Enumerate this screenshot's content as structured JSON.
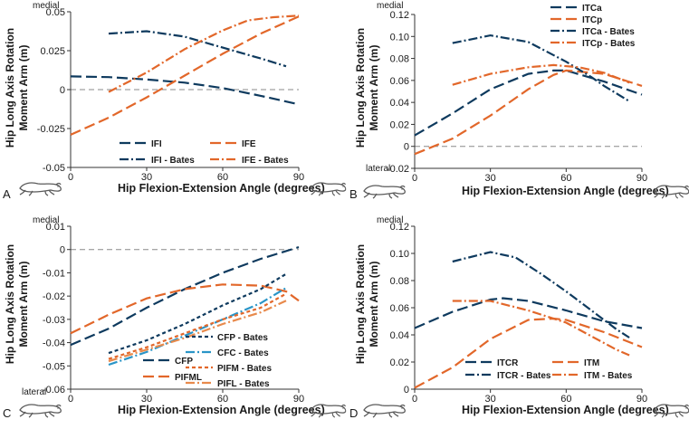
{
  "chart_data": [
    {
      "panel": "A",
      "type": "line",
      "xlabel": "Hip Flexion-Extension Angle (degrees)",
      "ylabel": [
        "Hip Long Axis Rotation",
        "Moment Arm (m)"
      ],
      "xlim": [
        0,
        90
      ],
      "ylim": [
        -0.05,
        0.05
      ],
      "xticks": [
        0,
        30,
        60,
        90
      ],
      "yticks": [
        -0.05,
        -0.025,
        0,
        0.025,
        0.05
      ],
      "ytick_labels": [
        "-0.05",
        "-0.025",
        "0",
        "0.025",
        "0.05"
      ],
      "top_word": "medial",
      "bottom_word": "",
      "legend_position": "bottom",
      "series": [
        {
          "name": "IFI",
          "color": "#0e3a5e",
          "dash": "12,5",
          "points": [
            [
              0,
              0.0085
            ],
            [
              15,
              0.008
            ],
            [
              30,
              0.0065
            ],
            [
              45,
              0.0045
            ],
            [
              60,
              0.001
            ],
            [
              75,
              -0.004
            ],
            [
              90,
              -0.0095
            ]
          ]
        },
        {
          "name": "IFE",
          "color": "#e2672a",
          "dash": "12,5",
          "points": [
            [
              0,
              -0.029
            ],
            [
              15,
              -0.018
            ],
            [
              30,
              -0.005
            ],
            [
              45,
              0.009
            ],
            [
              60,
              0.023
            ],
            [
              75,
              0.036
            ],
            [
              90,
              0.047
            ]
          ]
        },
        {
          "name": "IFI - Bates",
          "color": "#0e3a5e",
          "dash": "10,3,2,3",
          "points": [
            [
              15,
              0.036
            ],
            [
              30,
              0.0375
            ],
            [
              45,
              0.034
            ],
            [
              60,
              0.027
            ],
            [
              75,
              0.02
            ],
            [
              85,
              0.015
            ]
          ]
        },
        {
          "name": "IFE - Bates",
          "color": "#e2672a",
          "dash": "10,3,2,3",
          "points": [
            [
              15,
              -0.0015
            ],
            [
              30,
              0.011
            ],
            [
              45,
              0.026
            ],
            [
              60,
              0.038
            ],
            [
              70,
              0.0445
            ],
            [
              80,
              0.0465
            ],
            [
              90,
              0.0475
            ]
          ]
        }
      ]
    },
    {
      "panel": "B",
      "type": "line",
      "xlabel": "Hip Flexion-Extension Angle (degrees)",
      "ylabel": [
        "Hip Long Axis Rotation",
        "Moment Arm (m)"
      ],
      "xlim": [
        0,
        90
      ],
      "ylim": [
        -0.02,
        0.12
      ],
      "xticks": [
        0,
        30,
        60,
        90
      ],
      "yticks": [
        -0.02,
        0,
        0.02,
        0.04,
        0.06,
        0.08,
        0.1,
        0.12
      ],
      "ytick_labels": [
        "-0.02",
        "0",
        "0.02",
        "0.04",
        "0.06",
        "0.08",
        "0.10",
        "0.12"
      ],
      "top_word": "medial",
      "bottom_word": "lateral",
      "legend_position": "top-right",
      "series": [
        {
          "name": "ITCa",
          "color": "#0e3a5e",
          "dash": "12,5",
          "points": [
            [
              0,
              0.01
            ],
            [
              15,
              0.03
            ],
            [
              30,
              0.052
            ],
            [
              45,
              0.066
            ],
            [
              55,
              0.069
            ],
            [
              60,
              0.069
            ],
            [
              75,
              0.059
            ],
            [
              90,
              0.047
            ]
          ]
        },
        {
          "name": "ITCp",
          "color": "#e2672a",
          "dash": "12,5",
          "points": [
            [
              0,
              -0.007
            ],
            [
              15,
              0.007
            ],
            [
              30,
              0.028
            ],
            [
              45,
              0.052
            ],
            [
              55,
              0.065
            ],
            [
              60,
              0.069
            ],
            [
              75,
              0.066
            ],
            [
              90,
              0.055
            ]
          ]
        },
        {
          "name": "ITCa - Bates",
          "color": "#0e3a5e",
          "dash": "10,3,2,3",
          "points": [
            [
              15,
              0.094
            ],
            [
              30,
              0.101
            ],
            [
              45,
              0.095
            ],
            [
              60,
              0.077
            ],
            [
              70,
              0.063
            ],
            [
              75,
              0.055
            ],
            [
              85,
              0.041
            ]
          ]
        },
        {
          "name": "ITCp - Bates",
          "color": "#e2672a",
          "dash": "10,3,2,3",
          "points": [
            [
              15,
              0.056
            ],
            [
              30,
              0.066
            ],
            [
              45,
              0.072
            ],
            [
              55,
              0.074
            ],
            [
              65,
              0.072
            ],
            [
              75,
              0.067
            ],
            [
              85,
              0.058
            ]
          ]
        }
      ]
    },
    {
      "panel": "C",
      "type": "line",
      "xlabel": "Hip Flexion-Extension Angle (degrees)",
      "ylabel": [
        "Hip Long Axis Rotation",
        "Moment Arm (m)"
      ],
      "xlim": [
        0,
        90
      ],
      "ylim": [
        -0.06,
        0.01
      ],
      "xticks": [
        0,
        30,
        60,
        90
      ],
      "yticks": [
        -0.06,
        -0.05,
        -0.04,
        -0.03,
        -0.02,
        -0.01,
        0,
        0.01
      ],
      "ytick_labels": [
        "-0.06",
        "-0.05",
        "-0.04",
        "-0.03",
        "-0.02",
        "-0.01",
        "0",
        "0.01"
      ],
      "top_word": "medial",
      "bottom_word": "lateral",
      "legend_position": "bottom-right",
      "series": [
        {
          "name": "CFP",
          "color": "#0e3a5e",
          "dash": "12,5",
          "points": [
            [
              0,
              -0.041
            ],
            [
              15,
              -0.034
            ],
            [
              30,
              -0.025
            ],
            [
              45,
              -0.017
            ],
            [
              60,
              -0.01
            ],
            [
              75,
              -0.004
            ],
            [
              90,
              0.001
            ]
          ]
        },
        {
          "name": "PIFML",
          "color": "#e2672a",
          "dash": "12,5",
          "points": [
            [
              0,
              -0.036
            ],
            [
              15,
              -0.028
            ],
            [
              30,
              -0.021
            ],
            [
              45,
              -0.017
            ],
            [
              60,
              -0.015
            ],
            [
              75,
              -0.0155
            ],
            [
              85,
              -0.018
            ],
            [
              90,
              -0.022
            ]
          ]
        },
        {
          "name": "CFP - Bates",
          "color": "#0e3a5e",
          "dash": "4,3",
          "points": [
            [
              15,
              -0.0445
            ],
            [
              30,
              -0.039
            ],
            [
              45,
              -0.032
            ],
            [
              60,
              -0.024
            ],
            [
              75,
              -0.017
            ],
            [
              85,
              -0.0105
            ]
          ]
        },
        {
          "name": "CFC - Bates",
          "color": "#2a95c7",
          "dash": "10,3,2,3",
          "points": [
            [
              15,
              -0.0495
            ],
            [
              30,
              -0.044
            ],
            [
              45,
              -0.037
            ],
            [
              60,
              -0.03
            ],
            [
              75,
              -0.023
            ],
            [
              85,
              -0.0165
            ]
          ]
        },
        {
          "name": "PIFM - Bates",
          "color": "#e2672a",
          "dash": "4,3",
          "points": [
            [
              15,
              -0.047
            ],
            [
              30,
              -0.042
            ],
            [
              45,
              -0.036
            ],
            [
              60,
              -0.03
            ],
            [
              75,
              -0.025
            ],
            [
              85,
              -0.019
            ]
          ]
        },
        {
          "name": "PIFL - Bates",
          "color": "#e88a4c",
          "dash": "10,3,2,3",
          "points": [
            [
              15,
              -0.048
            ],
            [
              30,
              -0.043
            ],
            [
              45,
              -0.038
            ],
            [
              60,
              -0.032
            ],
            [
              75,
              -0.027
            ],
            [
              85,
              -0.022
            ]
          ]
        }
      ]
    },
    {
      "panel": "D",
      "type": "line",
      "xlabel": "Hip Flexion-Extension Angle (degrees)",
      "ylabel": [
        "Hip Long Axis Rotation",
        "Moment Arm (m)"
      ],
      "xlim": [
        0,
        90
      ],
      "ylim": [
        0,
        0.12
      ],
      "xticks": [
        0,
        30,
        60,
        90
      ],
      "yticks": [
        0,
        0.02,
        0.04,
        0.06,
        0.08,
        0.1,
        0.12
      ],
      "ytick_labels": [
        "0",
        "0.02",
        "0.04",
        "0.06",
        "0.08",
        "0.10",
        "0.12"
      ],
      "top_word": "medial",
      "bottom_word": "",
      "legend_position": "bottom",
      "series": [
        {
          "name": "ITCR",
          "color": "#0e3a5e",
          "dash": "12,5",
          "points": [
            [
              0,
              0.045
            ],
            [
              15,
              0.057
            ],
            [
              30,
              0.066
            ],
            [
              35,
              0.067
            ],
            [
              45,
              0.065
            ],
            [
              60,
              0.058
            ],
            [
              75,
              0.05
            ],
            [
              90,
              0.045
            ]
          ]
        },
        {
          "name": "ITM",
          "color": "#e2672a",
          "dash": "12,5",
          "points": [
            [
              0,
              0.001
            ],
            [
              15,
              0.016
            ],
            [
              30,
              0.037
            ],
            [
              45,
              0.051
            ],
            [
              55,
              0.052
            ],
            [
              60,
              0.051
            ],
            [
              75,
              0.042
            ],
            [
              90,
              0.031
            ]
          ]
        },
        {
          "name": "ITCR - Bates",
          "color": "#0e3a5e",
          "dash": "10,3,2,3",
          "points": [
            [
              15,
              0.094
            ],
            [
              30,
              0.101
            ],
            [
              40,
              0.097
            ],
            [
              50,
              0.085
            ],
            [
              60,
              0.072
            ],
            [
              70,
              0.058
            ],
            [
              80,
              0.044
            ],
            [
              85,
              0.038
            ]
          ]
        },
        {
          "name": "ITM - Bates",
          "color": "#e2672a",
          "dash": "10,3,2,3",
          "points": [
            [
              15,
              0.065
            ],
            [
              30,
              0.065
            ],
            [
              45,
              0.058
            ],
            [
              60,
              0.049
            ],
            [
              70,
              0.039
            ],
            [
              80,
              0.029
            ],
            [
              85,
              0.025
            ]
          ]
        }
      ]
    }
  ]
}
